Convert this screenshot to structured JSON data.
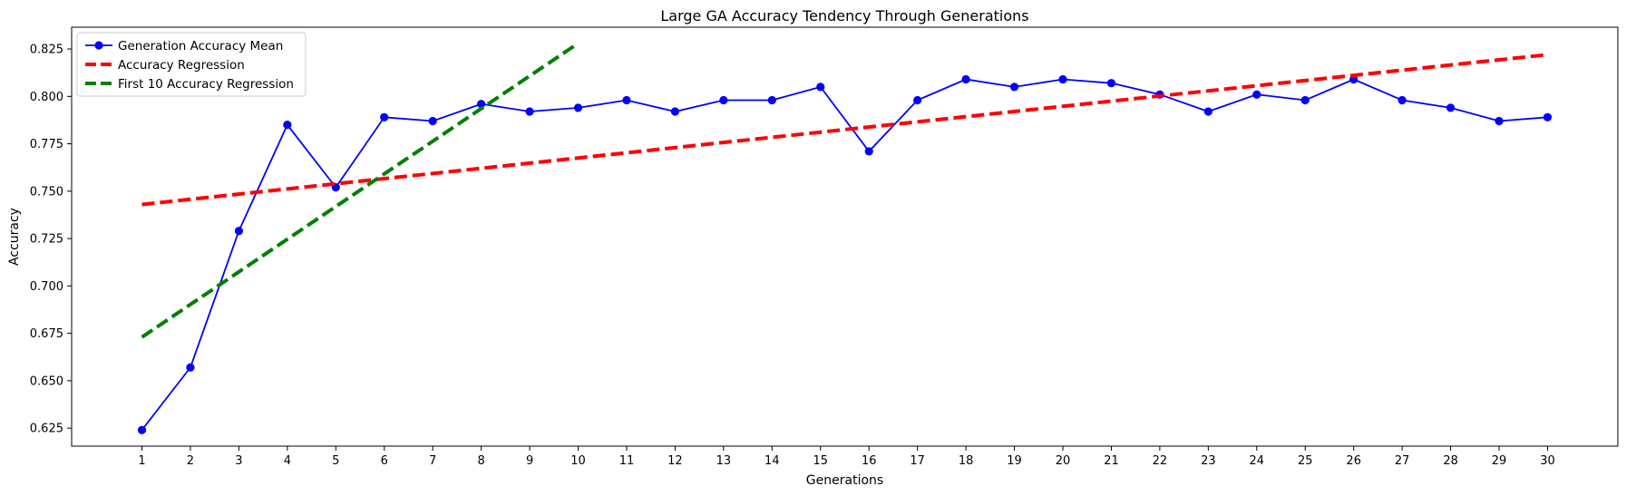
{
  "chart_data": {
    "type": "line",
    "title": "Large GA Accuracy Tendency Through Generations",
    "xlabel": "Generations",
    "ylabel": "Accuracy",
    "x": [
      1,
      2,
      3,
      4,
      5,
      6,
      7,
      8,
      9,
      10,
      11,
      12,
      13,
      14,
      15,
      16,
      17,
      18,
      19,
      20,
      21,
      22,
      23,
      24,
      25,
      26,
      27,
      28,
      29,
      30
    ],
    "xlim": [
      -0.45,
      31.45
    ],
    "ylim": [
      0.6155,
      0.8365
    ],
    "yticks": [
      "0.625",
      "0.650",
      "0.675",
      "0.700",
      "0.725",
      "0.750",
      "0.775",
      "0.800",
      "0.825"
    ],
    "grid": false,
    "legend_position": "upper-left",
    "series": [
      {
        "name": "Generation Accuracy Mean",
        "style": "solid-marker",
        "color": "#0000ff",
        "values": [
          0.624,
          0.657,
          0.729,
          0.785,
          0.752,
          0.789,
          0.787,
          0.796,
          0.792,
          0.794,
          0.798,
          0.792,
          0.798,
          0.798,
          0.805,
          0.771,
          0.798,
          0.809,
          0.805,
          0.809,
          0.807,
          0.801,
          0.792,
          0.801,
          0.798,
          0.809,
          0.798,
          0.794,
          0.787,
          0.789
        ]
      },
      {
        "name": "Accuracy Regression",
        "style": "dashed",
        "color": "#ff0000",
        "x": [
          1,
          30
        ],
        "values": [
          0.743,
          0.822
        ]
      },
      {
        "name": "First 10 Accuracy Regression",
        "style": "dashed",
        "color": "#008000",
        "x": [
          1,
          10
        ],
        "values": [
          0.673,
          0.828
        ]
      }
    ]
  }
}
